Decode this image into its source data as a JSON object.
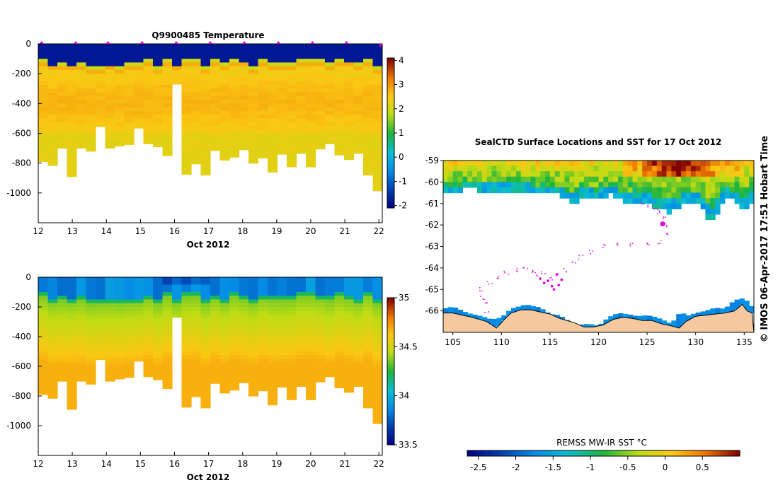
{
  "chart_data": [
    {
      "type": "heatmap",
      "id": "temperature",
      "title": "Q9900485  Temperature",
      "xlabel": "Oct 2012",
      "ylabel": "",
      "xlim": [
        12,
        22.1
      ],
      "ylim": [
        -1200,
        0
      ],
      "x_ticks": [
        12,
        13,
        14,
        15,
        16,
        17,
        18,
        19,
        20,
        21,
        22
      ],
      "x_tick_labels": [
        "12",
        "13",
        "14",
        "15",
        "16",
        "17",
        "18",
        "19",
        "20",
        "21",
        "22"
      ],
      "y_ticks": [
        0,
        -200,
        -400,
        -600,
        -800,
        -1000
      ],
      "y_tick_labels": [
        "0",
        "-200",
        "-400",
        "-600",
        "-800",
        "-1000"
      ],
      "colorbar": {
        "min": -2.1,
        "max": 4.1,
        "ticks": [
          4,
          3,
          2,
          1,
          0,
          -1,
          -2
        ],
        "tick_labels": [
          "4",
          "3",
          "2",
          "1",
          "0",
          "-1",
          "-2"
        ]
      },
      "surface_values": [
        -1.8,
        2.0,
        2.8
      ],
      "deep_value": 2.3,
      "profile_max_depths": [
        -790,
        -815,
        -700,
        -890,
        -700,
        -720,
        -555,
        -700,
        -685,
        -675,
        -565,
        -670,
        -690,
        -750,
        -270,
        -875,
        -805,
        -880,
        -715,
        -780,
        -760,
        -710,
        -800,
        -765,
        -860,
        -740,
        -825,
        -735,
        -825,
        -705,
        -670,
        -745,
        -775,
        -735,
        -880,
        -985
      ],
      "markers_x": [
        12.1,
        13.1,
        14.05,
        15.05,
        16.05,
        17.05,
        18.05,
        19.05,
        20.05,
        21.05,
        22.05
      ]
    },
    {
      "type": "heatmap",
      "id": "salinity",
      "title": "",
      "xlabel": "Oct 2012",
      "ylabel": "",
      "xlim": [
        12,
        22.1
      ],
      "ylim": [
        -1200,
        0
      ],
      "x_ticks": [
        12,
        13,
        14,
        15,
        16,
        17,
        18,
        19,
        20,
        21,
        22
      ],
      "x_tick_labels": [
        "12",
        "13",
        "14",
        "15",
        "16",
        "17",
        "18",
        "19",
        "20",
        "21",
        "22"
      ],
      "y_ticks": [
        0,
        -200,
        -400,
        -600,
        -800,
        -1000
      ],
      "y_tick_labels": [
        "0",
        "-200",
        "-400",
        "-600",
        "-800",
        "-1000"
      ],
      "colorbar": {
        "min": 33.5,
        "max": 35.0,
        "ticks": [
          35,
          34.5,
          34,
          33.5
        ],
        "tick_labels": [
          "35",
          "34.5",
          "34",
          "33.5"
        ]
      },
      "surface_value": 33.95,
      "deep_value": 34.68,
      "profile_max_depths": [
        -790,
        -815,
        -700,
        -890,
        -700,
        -720,
        -555,
        -700,
        -685,
        -675,
        -565,
        -670,
        -690,
        -750,
        -270,
        -875,
        -805,
        -880,
        -715,
        -780,
        -760,
        -710,
        -800,
        -765,
        -860,
        -740,
        -825,
        -735,
        -825,
        -705,
        -670,
        -745,
        -775,
        -735,
        -880,
        -985
      ]
    },
    {
      "type": "heatmap",
      "id": "sst_map",
      "title": "SealCTD Surface Locations and SST for 17 Oct 2012",
      "xlabel": "",
      "ylabel": "",
      "xlim": [
        104,
        136
      ],
      "ylim": [
        -67,
        -59
      ],
      "x_ticks": [
        105,
        110,
        115,
        120,
        125,
        130,
        135
      ],
      "x_tick_labels": [
        "105",
        "110",
        "115",
        "120",
        "125",
        "130",
        "135"
      ],
      "y_ticks": [
        -59,
        -60,
        -61,
        -62,
        -63,
        -64,
        -65,
        -66
      ],
      "y_tick_labels": [
        "-59",
        "-60",
        "-61",
        "-62",
        "-63",
        "-64",
        "-65",
        "-66"
      ],
      "colorbar": {
        "label": "REMSS MW-IR SST °C",
        "min": -2.65,
        "max": 1.0,
        "ticks": [
          -2.5,
          -2,
          -1.5,
          -1,
          -0.5,
          0,
          0.5
        ],
        "tick_labels": [
          "-2.5",
          "-2",
          "-1.5",
          "-1",
          "-0.5",
          "0",
          "0.5"
        ]
      },
      "ice_edge": [
        [
          104,
          -60.3
        ],
        [
          105,
          -60.5
        ],
        [
          106.5,
          -60.2
        ],
        [
          108,
          -60.3
        ],
        [
          110,
          -60.3
        ],
        [
          112,
          -60.25
        ],
        [
          113,
          -60.35
        ],
        [
          114,
          -60.55
        ],
        [
          115,
          -60.35
        ],
        [
          116.5,
          -60.6
        ],
        [
          117.5,
          -60.9
        ],
        [
          118.5,
          -60.55
        ],
        [
          120,
          -60.7
        ],
        [
          121,
          -60.45
        ],
        [
          122,
          -60.65
        ],
        [
          123,
          -60.8
        ],
        [
          124,
          -60.75
        ],
        [
          124.5,
          -61.0
        ],
        [
          125.5,
          -61.0
        ],
        [
          126.5,
          -61.1
        ],
        [
          127,
          -61.3
        ],
        [
          128,
          -61.2
        ],
        [
          128.5,
          -60.95
        ],
        [
          129,
          -60.75
        ],
        [
          130,
          -60.8
        ],
        [
          131,
          -61.3
        ],
        [
          131.5,
          -61.8
        ],
        [
          132,
          -61.6
        ],
        [
          132.5,
          -61.0
        ],
        [
          133,
          -60.6
        ],
        [
          134,
          -60.8
        ],
        [
          135,
          -61.1
        ],
        [
          135.8,
          -60.9
        ]
      ],
      "ice_edge_south": [
        [
          104,
          -65.9
        ],
        [
          105,
          -65.8
        ],
        [
          106.5,
          -66.1
        ],
        [
          108,
          -66.25
        ],
        [
          109,
          -66.4
        ],
        [
          110,
          -66.3
        ],
        [
          111,
          -65.9
        ],
        [
          112.5,
          -65.7
        ],
        [
          114,
          -65.85
        ],
        [
          115,
          -66.15
        ],
        [
          116,
          -66.2
        ],
        [
          117,
          -66.5
        ],
        [
          118,
          -66.65
        ],
        [
          119,
          -66.6
        ],
        [
          120,
          -66.7
        ],
        [
          121,
          -66.3
        ],
        [
          122,
          -66.1
        ],
        [
          123,
          -66.15
        ],
        [
          124,
          -66.25
        ],
        [
          125,
          -66.2
        ],
        [
          126,
          -66.3
        ],
        [
          127.5,
          -66.6
        ],
        [
          128.5,
          -66.0
        ],
        [
          129,
          -66.25
        ],
        [
          130,
          -66.1
        ],
        [
          131,
          -66.0
        ],
        [
          132,
          -65.85
        ],
        [
          133,
          -65.9
        ],
        [
          134,
          -65.5
        ],
        [
          135,
          -65.4
        ],
        [
          135.8,
          -65.8
        ]
      ],
      "land_outline": [
        [
          104,
          -66.1
        ],
        [
          105,
          -66.1
        ],
        [
          106,
          -66.2
        ],
        [
          107,
          -66.3
        ],
        [
          108.5,
          -66.5
        ],
        [
          109.5,
          -66.8
        ],
        [
          110.3,
          -66.4
        ],
        [
          111,
          -66.1
        ],
        [
          112,
          -65.95
        ],
        [
          113,
          -65.95
        ],
        [
          114,
          -66.05
        ],
        [
          115,
          -66.15
        ],
        [
          116,
          -66.35
        ],
        [
          117.5,
          -66.55
        ],
        [
          118.5,
          -66.75
        ],
        [
          119.5,
          -66.75
        ],
        [
          120.5,
          -66.65
        ],
        [
          121.5,
          -66.4
        ],
        [
          122.5,
          -66.3
        ],
        [
          123.5,
          -66.35
        ],
        [
          124.5,
          -66.45
        ],
        [
          125.5,
          -66.45
        ],
        [
          126.5,
          -66.6
        ],
        [
          127.5,
          -66.7
        ],
        [
          128.3,
          -66.8
        ],
        [
          129,
          -66.5
        ],
        [
          130,
          -66.25
        ],
        [
          131,
          -66.2
        ],
        [
          132,
          -66.15
        ],
        [
          133,
          -66.1
        ],
        [
          134,
          -66.0
        ],
        [
          134.8,
          -65.7
        ],
        [
          135.3,
          -66.0
        ],
        [
          135.8,
          -66.1
        ]
      ],
      "seal_track": [
        [
          108.5,
          -66.1
        ],
        [
          108.3,
          -65.7
        ],
        [
          108.0,
          -65.4
        ],
        [
          108.0,
          -65.0
        ],
        [
          108.8,
          -64.7
        ],
        [
          109.6,
          -64.4
        ],
        [
          110.5,
          -64.2
        ],
        [
          111.5,
          -64.1
        ],
        [
          112.5,
          -64.0
        ],
        [
          113.0,
          -64.15
        ],
        [
          113.6,
          -64.3
        ],
        [
          114.3,
          -64.25
        ],
        [
          115.1,
          -64.5
        ],
        [
          115.8,
          -64.3
        ],
        [
          116.5,
          -64.1
        ],
        [
          117.4,
          -63.8
        ],
        [
          118.2,
          -63.5
        ],
        [
          119.3,
          -63.25
        ],
        [
          120.6,
          -63.0
        ],
        [
          122.0,
          -62.9
        ],
        [
          123.5,
          -62.9
        ],
        [
          125.0,
          -62.9
        ],
        [
          126.3,
          -62.8
        ],
        [
          126.9,
          -62.4
        ],
        [
          127.0,
          -62.0
        ],
        [
          126.7,
          -61.7
        ],
        [
          126.3,
          -61.4
        ],
        [
          125.9,
          -61.2
        ],
        [
          125.3,
          -61.1
        ],
        [
          124.6,
          -61.0
        ]
      ],
      "seal_blob": [
        [
          114.0,
          -64.5
        ],
        [
          114.4,
          -64.7
        ],
        [
          114.8,
          -64.6
        ],
        [
          115.2,
          -64.85
        ],
        [
          115.4,
          -65.0
        ],
        [
          115.9,
          -64.8
        ],
        [
          116.2,
          -64.55
        ],
        [
          115.7,
          -64.3
        ]
      ]
    }
  ],
  "credit": "© IMOS 06-Apr-2017 17:51 Hobart Time"
}
